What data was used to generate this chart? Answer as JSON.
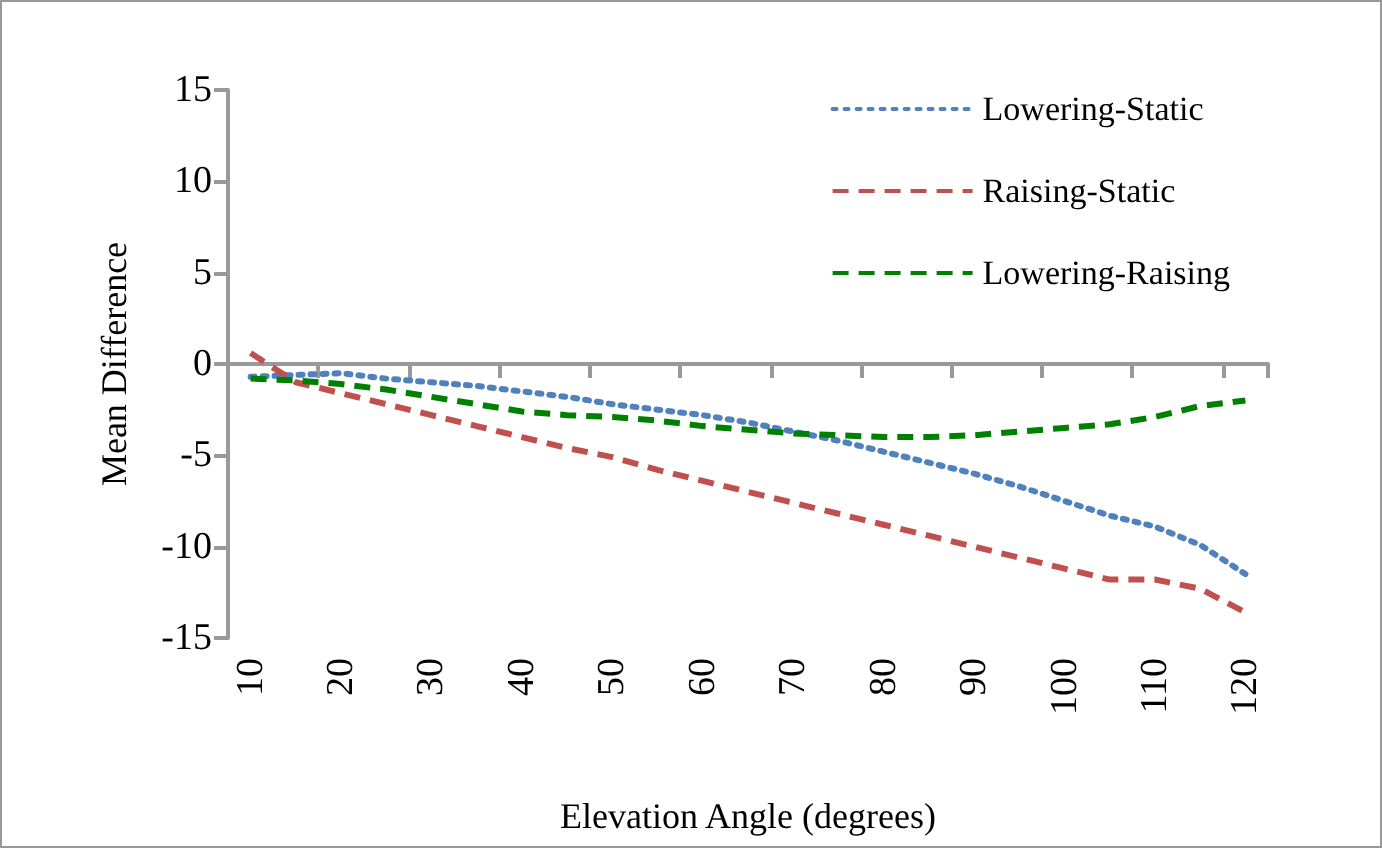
{
  "chart_data": {
    "type": "line",
    "xlabel": "Elevation Angle (degrees)",
    "ylabel": "Mean Difference",
    "categories": [
      "10",
      null,
      "20",
      null,
      "30",
      null,
      "40",
      null,
      "50",
      null,
      "60",
      null,
      "70",
      null,
      "80",
      null,
      "90",
      null,
      "100",
      null,
      "110",
      null,
      "120"
    ],
    "series": [
      {
        "name": "Lowering-Static",
        "color": "#4f81bd",
        "line_style": "dotted",
        "values": [
          -0.7,
          -0.6,
          -0.5,
          -0.8,
          -1.0,
          -1.2,
          -1.5,
          -1.8,
          -2.2,
          -2.5,
          -2.8,
          -3.2,
          -3.7,
          -4.2,
          -4.8,
          -5.4,
          -6.0,
          -6.7,
          -7.5,
          -8.3,
          -8.9,
          -9.9,
          -11.5
        ]
      },
      {
        "name": "Raising-Static",
        "color": "#c0504d",
        "line_style": "dashed",
        "values": [
          0.6,
          -1.0,
          -1.6,
          -2.2,
          -2.8,
          -3.4,
          -4.0,
          -4.6,
          -5.1,
          -5.8,
          -6.4,
          -7.0,
          -7.6,
          -8.2,
          -8.8,
          -9.4,
          -10.0,
          -10.6,
          -11.2,
          -11.8,
          -11.8,
          -12.3,
          -13.6
        ]
      },
      {
        "name": "Lowering-Raising",
        "color": "#008000",
        "line_style": "dashed",
        "values": [
          -0.8,
          -0.9,
          -1.1,
          -1.4,
          -1.8,
          -2.2,
          -2.6,
          -2.8,
          -2.9,
          -3.1,
          -3.4,
          -3.6,
          -3.8,
          -3.9,
          -4.0,
          -4.0,
          -3.9,
          -3.7,
          -3.5,
          -3.3,
          -2.9,
          -2.3,
          -2.0
        ]
      }
    ],
    "ylim": [
      -15,
      15
    ],
    "yticks": [
      -15,
      -10,
      -5,
      0,
      5,
      10,
      15
    ],
    "legend": "top right"
  }
}
